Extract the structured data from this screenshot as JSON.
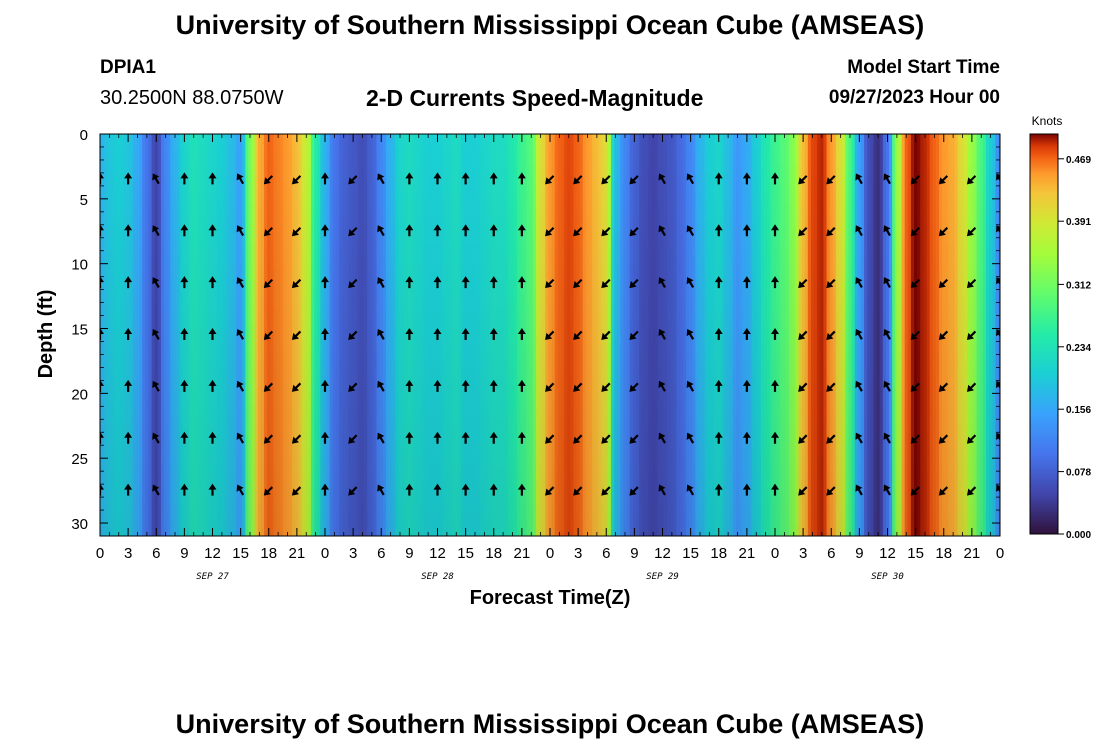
{
  "header": {
    "title": "University of Southern Mississippi Ocean Cube (AMSEAS)",
    "station_id": "DPIA1",
    "station_coords": "30.2500N  88.0750W",
    "plot_title": "2-D Currents Speed-Magnitude",
    "model_start_label": "Model Start Time",
    "model_start_value": "09/27/2023 Hour 00"
  },
  "footer": {
    "title": "University of Southern Mississippi Ocean Cube (AMSEAS)"
  },
  "chart_data": {
    "type": "heatmap",
    "title": "2-D Currents Speed-Magnitude",
    "xlabel": "Forecast Time(Z)",
    "ylabel": "Depth (ft)",
    "x_tick_labels": [
      "0",
      "3",
      "6",
      "9",
      "12",
      "15",
      "18",
      "21",
      "0",
      "3",
      "6",
      "9",
      "12",
      "15",
      "18",
      "21",
      "0",
      "3",
      "6",
      "9",
      "12",
      "15",
      "18",
      "21",
      "0",
      "3",
      "6",
      "9",
      "12",
      "15",
      "18",
      "21",
      "0"
    ],
    "date_labels": [
      {
        "label": "SEP 27",
        "hour": 12
      },
      {
        "label": "SEP 28",
        "hour": 36
      },
      {
        "label": "SEP 29",
        "hour": 60
      },
      {
        "label": "SEP 30",
        "hour": 84
      }
    ],
    "xlim": [
      0,
      96
    ],
    "ylim": [
      0,
      31
    ],
    "y_ticks": [
      0,
      5,
      10,
      15,
      20,
      25,
      30
    ],
    "colorbar": {
      "title": "Knots",
      "ticks": [
        0.0,
        0.078,
        0.156,
        0.234,
        0.312,
        0.391,
        0.469
      ],
      "tick_labels": [
        "0.000",
        "0.078",
        "0.156",
        "0.234",
        "0.312",
        "0.391",
        "0.469"
      ],
      "range": [
        0,
        0.5
      ]
    },
    "arrow_depths": [
      3.5,
      7.5,
      11.5,
      15.5,
      19.5,
      23.5,
      27.5
    ],
    "arrow_hours": [
      0,
      3,
      6,
      9,
      12,
      15,
      18,
      21,
      24,
      27,
      30,
      33,
      36,
      39,
      42,
      45,
      48,
      51,
      54,
      57,
      60,
      63,
      66,
      69,
      72,
      75,
      78,
      81,
      84,
      87,
      90,
      93,
      96
    ],
    "speed_profile_hours": [
      0,
      1,
      2,
      3,
      4,
      5,
      6,
      7,
      8,
      9,
      10,
      11,
      12,
      13,
      14,
      15,
      16,
      17,
      18,
      19,
      20,
      21,
      22,
      23,
      24,
      25,
      26,
      27,
      28,
      29,
      30,
      31,
      32,
      33,
      34,
      35,
      36,
      37,
      38,
      39,
      40,
      41,
      42,
      43,
      44,
      45,
      46,
      47,
      48,
      49,
      50,
      51,
      52,
      53,
      54,
      55,
      56,
      57,
      58,
      59,
      60,
      61,
      62,
      63,
      64,
      65,
      66,
      67,
      68,
      69,
      70,
      71,
      72,
      73,
      74,
      75,
      76,
      77,
      78,
      79,
      80,
      81,
      82,
      83,
      84,
      85,
      86,
      87,
      88,
      89,
      90,
      91,
      92,
      93,
      94,
      95,
      96
    ],
    "speed_knots": [
      0.17,
      0.19,
      0.2,
      0.19,
      0.16,
      0.1,
      0.05,
      0.12,
      0.17,
      0.21,
      0.23,
      0.22,
      0.21,
      0.2,
      0.18,
      0.15,
      0.32,
      0.44,
      0.47,
      0.46,
      0.45,
      0.43,
      0.38,
      0.25,
      0.17,
      0.1,
      0.08,
      0.07,
      0.06,
      0.08,
      0.12,
      0.17,
      0.21,
      0.22,
      0.21,
      0.2,
      0.2,
      0.21,
      0.22,
      0.2,
      0.2,
      0.21,
      0.22,
      0.22,
      0.24,
      0.27,
      0.29,
      0.4,
      0.45,
      0.47,
      0.48,
      0.47,
      0.45,
      0.43,
      0.4,
      0.18,
      0.12,
      0.08,
      0.06,
      0.05,
      0.06,
      0.07,
      0.09,
      0.12,
      0.17,
      0.2,
      0.21,
      0.18,
      0.14,
      0.16,
      0.2,
      0.24,
      0.27,
      0.29,
      0.33,
      0.43,
      0.48,
      0.49,
      0.45,
      0.4,
      0.28,
      0.15,
      0.06,
      0.03,
      0.1,
      0.34,
      0.47,
      0.5,
      0.49,
      0.47,
      0.45,
      0.44,
      0.4,
      0.34,
      0.28,
      0.2,
      0.12
    ],
    "arrow_directions": "per-column dominant heading: north (up) during flood phases, southwest (down-left) during ebb phases"
  },
  "icons": {
    "arrow": "current-direction-arrow-icon"
  }
}
